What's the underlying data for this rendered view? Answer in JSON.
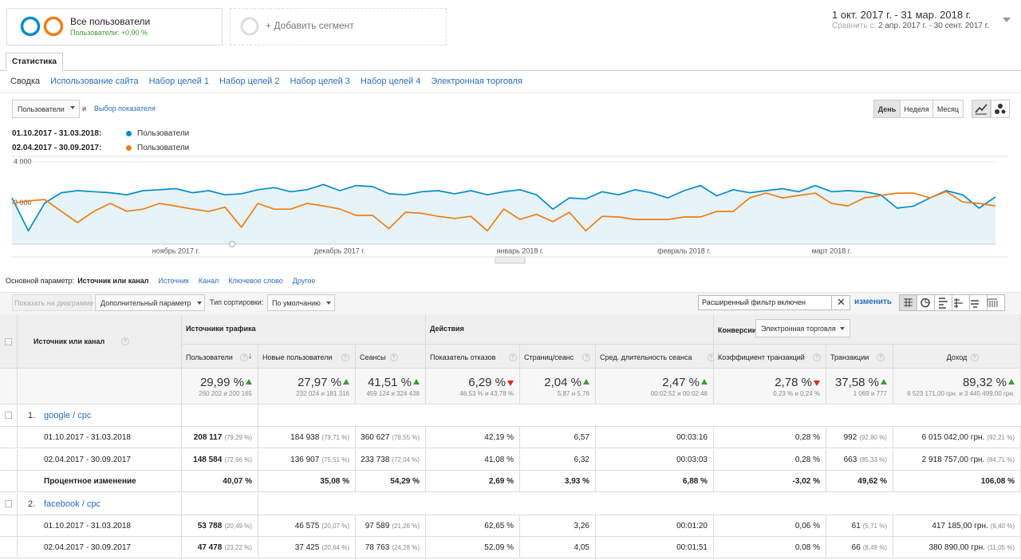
{
  "header": {
    "segment_title": "Все пользователи",
    "segment_sub": "Пользователи: +0,00 %",
    "add_segment": "+ Добавить сегмент",
    "date_range": "1 окт. 2017 г. - 31 мар. 2018 г.",
    "compare_label": "Сравнить с:",
    "compare_range": "2 апр. 2017 г. - 30 сент. 2017 г."
  },
  "tabs": [
    "Статистика"
  ],
  "subnav": [
    "Сводка",
    "Использование сайта",
    "Набор целей 1",
    "Набор целей 2",
    "Набор целей 3",
    "Набор целей 4",
    "Электронная торговля"
  ],
  "controls": {
    "metric": "Пользователи",
    "and": "и",
    "choose_metric": "Выбор показателя",
    "granularity": [
      "День",
      "Неделя",
      "Месяц"
    ]
  },
  "chart_data": {
    "type": "line",
    "categories": [
      null,
      null,
      null,
      null,
      null,
      null,
      null,
      null,
      null,
      null,
      "ноябрь 2017 г.",
      null,
      null,
      null,
      null,
      null,
      null,
      null,
      null,
      null,
      "декабрь 2017 г.",
      null,
      null,
      null,
      null,
      null,
      null,
      null,
      null,
      null,
      null,
      "январь 2018 г.",
      null,
      null,
      null,
      null,
      null,
      null,
      null,
      null,
      null,
      "февраль 2018 г.",
      null,
      null,
      null,
      null,
      null,
      null,
      null,
      null,
      "март 2018 г.",
      null,
      null,
      null,
      null,
      null,
      null,
      null,
      null,
      null,
      null
    ],
    "ylim": [
      0,
      4000
    ],
    "yticks": [
      {
        "value": 2000,
        "label": "2 000"
      },
      {
        "value": 4000,
        "label": "4 000"
      }
    ],
    "grid": true,
    "series": [
      {
        "name": "Пользователи",
        "period": "01.10.2017 - 31.03.2018:",
        "color": "#058dc7",
        "area": true,
        "values": [
          2250,
          650,
          2000,
          2500,
          2600,
          2550,
          2500,
          2400,
          2600,
          2650,
          2700,
          2500,
          2600,
          2400,
          2450,
          2650,
          2750,
          2550,
          2650,
          2900,
          2600,
          2850,
          2800,
          2450,
          2400,
          2550,
          2600,
          2450,
          2600,
          2400,
          2550,
          2650,
          2400,
          1700,
          2250,
          2200,
          2550,
          2400,
          2650,
          2500,
          2250,
          2600,
          2850,
          2350,
          2650,
          2500,
          2600,
          2700,
          2550,
          2850,
          2550,
          2600,
          2550,
          2400,
          1750,
          1850,
          2250,
          2600,
          2400,
          1750,
          2300
        ]
      },
      {
        "name": "Пользователи",
        "period": "02.04.2017 - 30.09.2017:",
        "color": "#ed7e17",
        "area": false,
        "values": [
          1980,
          2100,
          2170,
          1600,
          1050,
          1600,
          1980,
          1600,
          1700,
          1980,
          1850,
          1710,
          1590,
          1800,
          820,
          1980,
          1700,
          1700,
          1980,
          1860,
          1710,
          1400,
          1400,
          750,
          1550,
          1500,
          1350,
          1250,
          1350,
          650,
          1710,
          1200,
          1450,
          1090,
          1550,
          650,
          1350,
          1320,
          1200,
          1200,
          1200,
          1320,
          1320,
          1590,
          1590,
          2250,
          2480,
          2250,
          2370,
          2480,
          1980,
          1860,
          2250,
          2370,
          2480,
          2480,
          2250,
          2560,
          2050,
          1980,
          1860
        ]
      }
    ]
  },
  "dimensions": {
    "label": "Основной параметр:",
    "active": "Источник или канал",
    "options": [
      "Источник",
      "Канал",
      "Ключевое слово",
      "Другое"
    ]
  },
  "toolbar": {
    "show_on_chart": "Показать на диаграмме",
    "secondary": "Дополнительный параметр",
    "sort_label": "Тип сортировки:",
    "sort": "По умолчанию",
    "filter": "Расширенный фильтр включен",
    "edit": "изменить"
  },
  "table": {
    "first_header": "Источник или канал",
    "groups": [
      {
        "label": "Источники трафика",
        "columns": [
          "Пользователи",
          "Новые пользователи",
          "Сеансы"
        ]
      },
      {
        "label": "Действия",
        "columns": [
          "Показатель отказов",
          "Страниц/сеанс",
          "Сред. длительность сеанса"
        ]
      },
      {
        "label": "Конверсии",
        "selector": "Электронная торговля",
        "columns": [
          "Коэффициент транзакций",
          "Транзакции",
          "Доход"
        ]
      }
    ],
    "totals": [
      {
        "main": "29,99 %",
        "sub": "260 202 и 200 165",
        "dir": "up"
      },
      {
        "main": "27,97 %",
        "sub": "232 024 и 181 316",
        "dir": "up"
      },
      {
        "main": "41,51 %",
        "sub": "459 124 и 324 438",
        "dir": "up"
      },
      {
        "main": "6,29 %",
        "sub": "46,53 % и 43,78 %",
        "dir": "down"
      },
      {
        "main": "2,04 %",
        "sub": "5,87 и 5,76",
        "dir": "up"
      },
      {
        "main": "2,47 %",
        "sub": "00:02:52 и 00:02:48",
        "dir": "up"
      },
      {
        "main": "2,78 %",
        "sub": "0,23 % и 0,24 %",
        "dir": "down"
      },
      {
        "main": "37,58 %",
        "sub": "1 069 и 777",
        "dir": "up"
      },
      {
        "main": "89,32 %",
        "sub": "6 523 171,00 грн. и 3 445 499,00 грн.",
        "dir": "up"
      }
    ],
    "rows": [
      {
        "index": "1.",
        "source": "google / cpc",
        "rows": [
          {
            "label": "01.10.2017 - 31.03.2018",
            "cells": [
              {
                "v": "208 117",
                "p": "(79,29 %)"
              },
              {
                "v": "184 938",
                "p": "(79,71 %)"
              },
              {
                "v": "360 627",
                "p": "(78,55 %)"
              },
              "42,19 %",
              "6,57",
              "00:03:16",
              "0,28 %",
              {
                "v": "992",
                "p": "(92,80 %)"
              },
              {
                "v": "6 015 042,00 грн.",
                "p": "(92,21 %)"
              }
            ]
          },
          {
            "label": "02.04.2017 - 30.09.2017",
            "cells": [
              {
                "v": "148 584",
                "p": "(72,66 %)"
              },
              {
                "v": "136 907",
                "p": "(75,51 %)"
              },
              {
                "v": "233 738",
                "p": "(72,04 %)"
              },
              "41,08 %",
              "6,32",
              "00:03:03",
              "0,28 %",
              {
                "v": "663",
                "p": "(85,33 %)"
              },
              {
                "v": "2 918 757,00 грн.",
                "p": "(84,71 %)"
              }
            ]
          },
          {
            "label": "Процентное изменение",
            "cells": [
              "40,07 %",
              "35,08 %",
              "54,29 %",
              "2,69 %",
              "3,93 %",
              "6,88 %",
              "-3,02 %",
              "49,62 %",
              "106,08 %"
            ]
          }
        ]
      },
      {
        "index": "2.",
        "source": "facebook / cpc",
        "rows": [
          {
            "label": "01.10.2017 - 31.03.2018",
            "cells": [
              {
                "v": "53 788",
                "p": "(20,49 %)"
              },
              {
                "v": "46 575",
                "p": "(20,07 %)"
              },
              {
                "v": "97 589",
                "p": "(21,26 %)"
              },
              "62,65 %",
              "3,26",
              "00:01:20",
              "0,06 %",
              {
                "v": "61",
                "p": "(5,71 %)"
              },
              {
                "v": "417 185,00 грн.",
                "p": "(6,40 %)"
              }
            ]
          },
          {
            "label": "02.04.2017 - 30.09.2017",
            "cells": [
              {
                "v": "47 478",
                "p": "(23,22 %)"
              },
              {
                "v": "37 425",
                "p": "(20,64 %)"
              },
              {
                "v": "78 763",
                "p": "(24,28 %)"
              },
              "52,09 %",
              "4,05",
              "00:01:51",
              "0,08 %",
              {
                "v": "66",
                "p": "(8,49 %)"
              },
              {
                "v": "380 890,00 грн.",
                "p": "(11,05 %)"
              }
            ]
          }
        ]
      }
    ]
  }
}
